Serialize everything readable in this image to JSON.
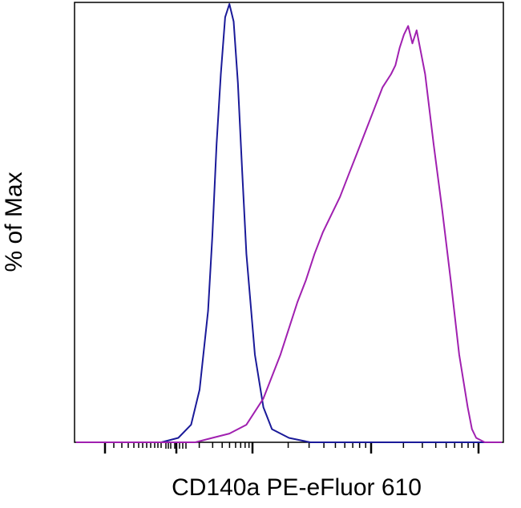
{
  "chart_data": {
    "type": "line",
    "title": "",
    "xlabel": "CD140a PE-eFluor 610",
    "ylabel": "% of Max",
    "xscale": "biexponential",
    "xlim": [
      0,
      1
    ],
    "ylim": [
      0,
      100
    ],
    "grid": false,
    "legend": "none",
    "x_tick_labels": [],
    "series": [
      {
        "color": "#1a1a99",
        "x": [
          0.0,
          0.2,
          0.24,
          0.27,
          0.29,
          0.31,
          0.32,
          0.33,
          0.34,
          0.35,
          0.36,
          0.37,
          0.38,
          0.39,
          0.4,
          0.42,
          0.44,
          0.46,
          0.5,
          0.55,
          1.0
        ],
        "y": [
          0,
          0,
          1,
          4,
          12,
          30,
          47,
          68,
          84,
          97,
          100,
          96,
          82,
          62,
          43,
          20,
          8,
          3,
          1,
          0,
          0
        ]
      },
      {
        "color": "#a020b0",
        "x": [
          0.0,
          0.28,
          0.32,
          0.36,
          0.4,
          0.44,
          0.48,
          0.52,
          0.54,
          0.56,
          0.58,
          0.6,
          0.62,
          0.64,
          0.66,
          0.68,
          0.7,
          0.72,
          0.74,
          0.75,
          0.76,
          0.77,
          0.78,
          0.79,
          0.8,
          0.81,
          0.82,
          0.83,
          0.84,
          0.86,
          0.88,
          0.9,
          0.92,
          0.93,
          0.94,
          0.96,
          1.0
        ],
        "y": [
          0,
          0,
          1,
          2,
          4,
          10,
          20,
          32,
          37,
          43,
          48,
          52,
          56,
          61,
          66,
          71,
          76,
          81,
          84,
          86,
          90,
          93,
          95,
          91,
          94,
          89,
          84,
          76,
          68,
          53,
          37,
          20,
          8,
          3,
          1,
          0,
          0
        ]
      }
    ]
  }
}
